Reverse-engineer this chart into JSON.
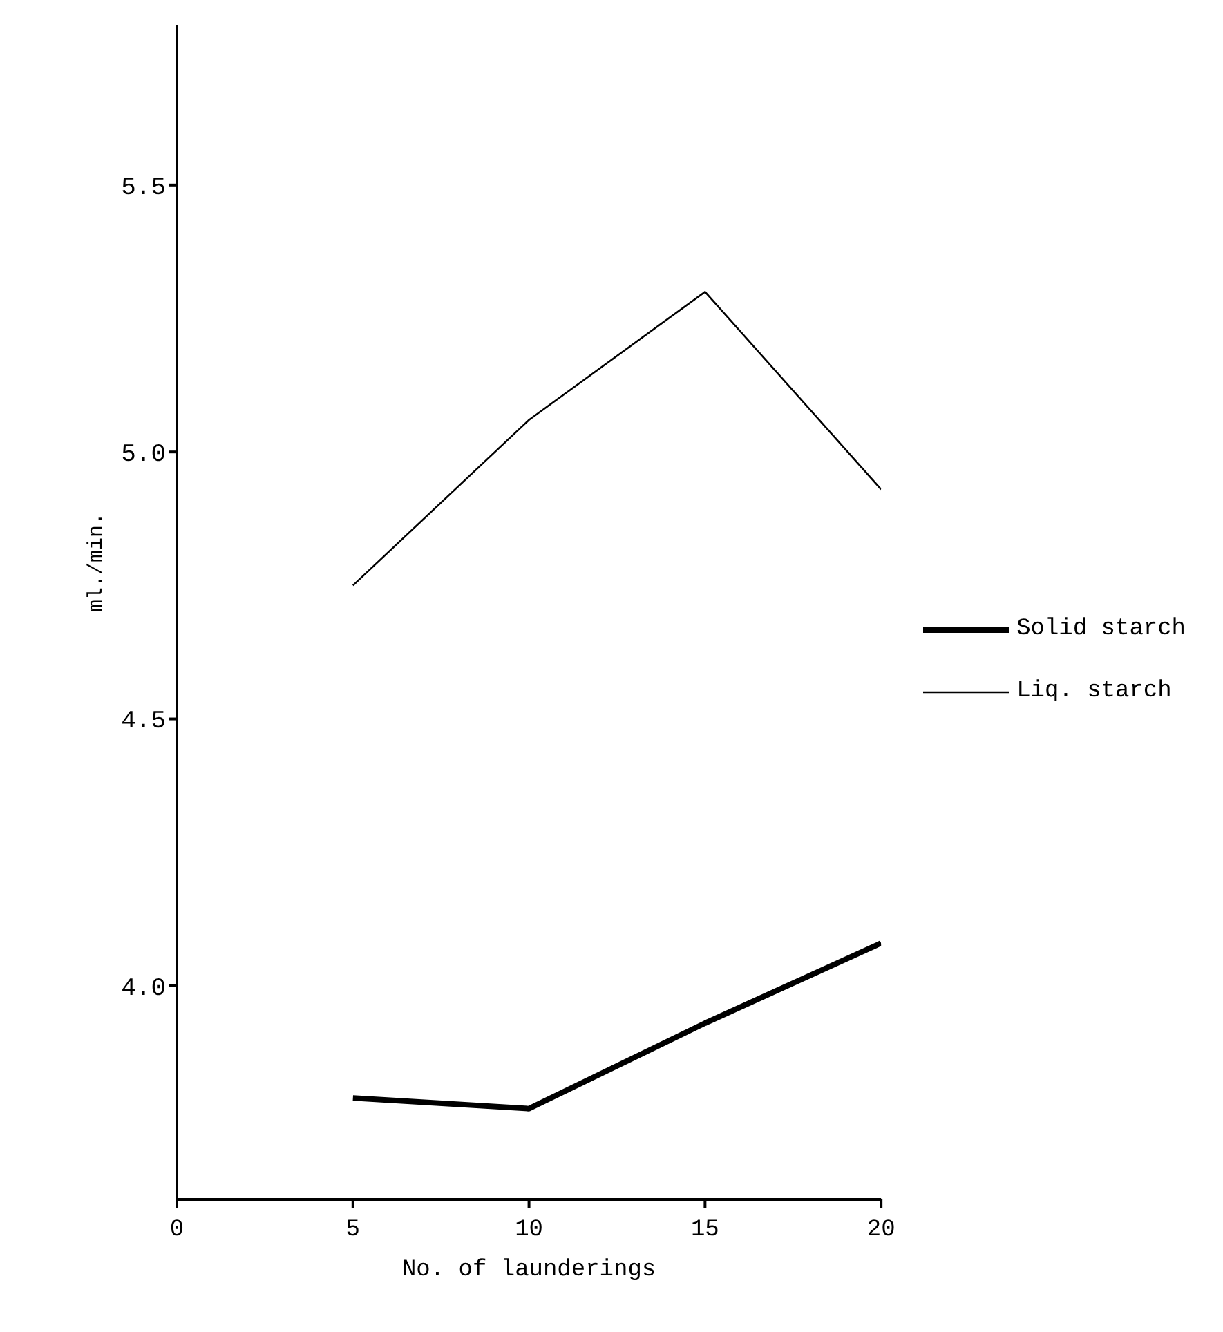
{
  "chart_data": {
    "type": "line",
    "xlabel": "No. of launderings",
    "ylabel": "ml./min.",
    "x": [
      5,
      10,
      15,
      20
    ],
    "series": [
      {
        "name": "Solid starch",
        "color": "#000000",
        "values": [
          3.79,
          3.77,
          3.93,
          4.08
        ]
      },
      {
        "name": "Liq. starch",
        "color": "#000000",
        "values": [
          4.75,
          5.06,
          5.3,
          4.93
        ]
      }
    ],
    "xlim": [
      0,
      20
    ],
    "xticks": [
      0,
      5,
      10,
      15,
      20
    ],
    "ylim": [
      3.6,
      5.8
    ],
    "yticks": [
      {
        "value": 4,
        "label": "4.0"
      },
      4.5,
      {
        "value": 5,
        "label": "5.0"
      },
      5.5
    ],
    "grid": false,
    "legend": "right",
    "marker": "none",
    "line_style": "solid"
  }
}
